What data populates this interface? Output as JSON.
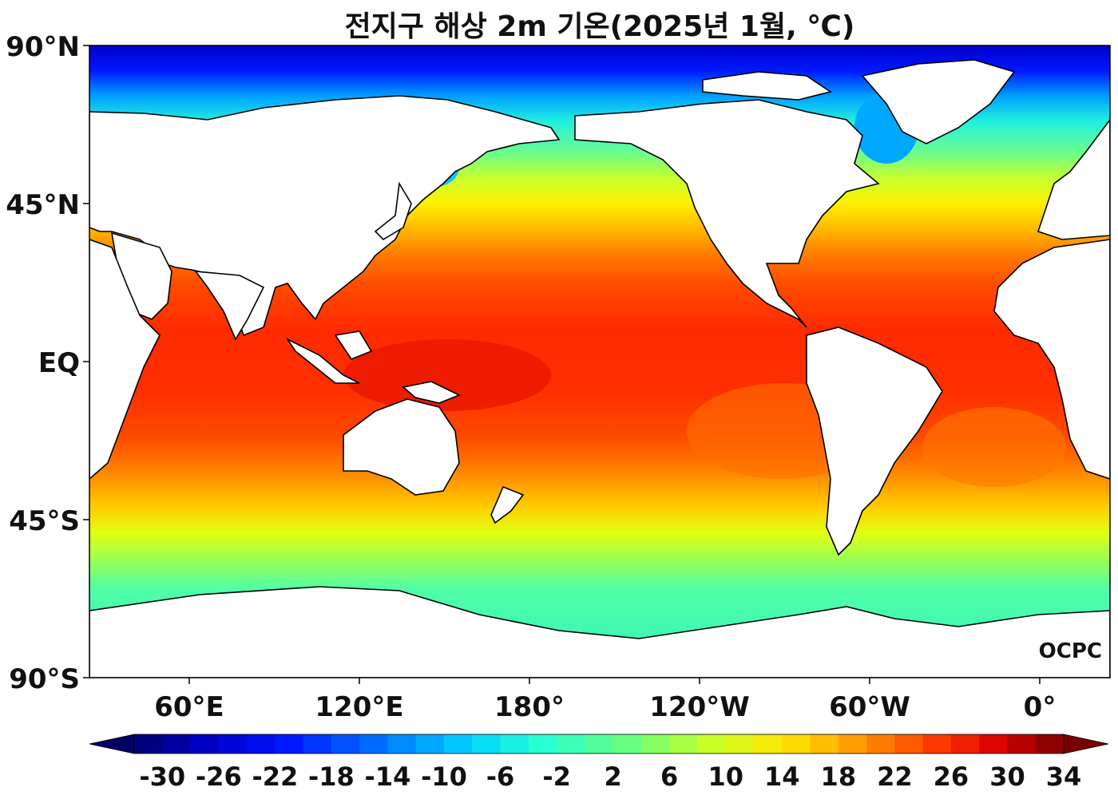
{
  "title": "전지구 해상 2m 기온(2025년 1월, ℃)",
  "lat_labels": [
    "90°N",
    "45°N",
    "EQ",
    "45°S",
    "90°S"
  ],
  "lon_labels": [
    "60°E",
    "120°E",
    "180°",
    "120°W",
    "60°W",
    "0°"
  ],
  "watermark": "OCPC",
  "colorbar": {
    "tick_labels": [
      "-30",
      "-26",
      "-22",
      "-18",
      "-14",
      "-10",
      "-6",
      "-2",
      "2",
      "6",
      "10",
      "14",
      "18",
      "22",
      "26",
      "30",
      "34"
    ],
    "min": -32,
    "max": 34,
    "step": 2,
    "extend": "both"
  },
  "colors": {
    "land": "#ffffff",
    "coast": "#000000"
  }
}
